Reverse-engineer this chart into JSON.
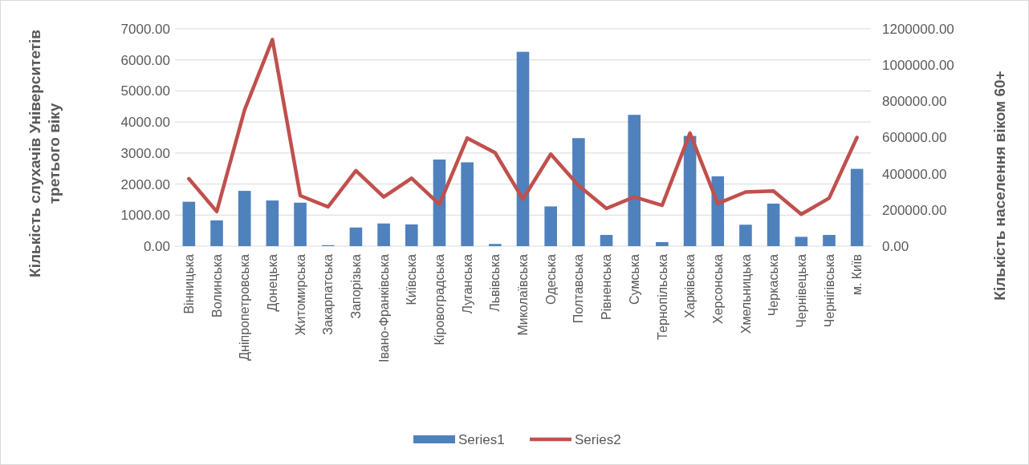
{
  "chart_data": {
    "type": "bar",
    "ylabel": "Кількість слухачів Університетів третього віку",
    "y2label": "Кількість населення віком 60+",
    "categories": [
      "Вінницька",
      "Волинська",
      "Дніпропетровська",
      "Донецька",
      "Житомирська",
      "Закарпатська",
      "Запорізька",
      "Івано-Франківська",
      "Київська",
      "Кіровоградська",
      "Луганська",
      "Львівська",
      "Миколаївська",
      "Одеська",
      "Полтавська",
      "Рівненська",
      "Сумська",
      "Тернопільська",
      "Харківська",
      "Херсонська",
      "Хмельницька",
      "Черкаська",
      "Чернівецька",
      "Чернігівська",
      "м. Київ"
    ],
    "series": [
      {
        "name": "Series1",
        "color": "#4f81bd",
        "values": [
          1430,
          830,
          1780,
          1470,
          1400,
          30,
          600,
          730,
          700,
          2790,
          2700,
          70,
          6260,
          1280,
          3480,
          360,
          4230,
          130,
          3550,
          2250,
          690,
          1370,
          300,
          360,
          2490
        ]
      },
      {
        "name": "Series2",
        "type": "line",
        "axis": "y2",
        "color": "#c0504d",
        "values": [
          372000,
          191000,
          752000,
          1141000,
          279000,
          217000,
          417000,
          272000,
          375000,
          231000,
          597000,
          516000,
          260000,
          508000,
          334000,
          208000,
          272000,
          225000,
          624000,
          235000,
          299000,
          304000,
          176000,
          265000,
          600000
        ]
      }
    ],
    "ylim": [
      0,
      7000
    ],
    "yticks": [
      {
        "value": 0,
        "label": "0.00"
      },
      {
        "value": 1000,
        "label": "1000.00"
      },
      {
        "value": 2000,
        "label": "2000.00"
      },
      {
        "value": 3000,
        "label": "3000.00"
      },
      {
        "value": 4000,
        "label": "4000.00"
      },
      {
        "value": 5000,
        "label": "5000.00"
      },
      {
        "value": 6000,
        "label": "6000.00"
      },
      {
        "value": 7000,
        "label": "7000.00"
      }
    ],
    "y2lim": [
      0,
      1200000
    ],
    "y2ticks": [
      {
        "value": 0,
        "label": "0.00"
      },
      {
        "value": 200000,
        "label": "200000.00"
      },
      {
        "value": 400000,
        "label": "400000.00"
      },
      {
        "value": 600000,
        "label": "600000.00"
      },
      {
        "value": 800000,
        "label": "800000.00"
      },
      {
        "value": 1000000,
        "label": "1000000.00"
      },
      {
        "value": 1200000,
        "label": "1200000.00"
      }
    ],
    "grid": "y",
    "legend": "bottom",
    "marker": "none",
    "line_style": "solid"
  }
}
